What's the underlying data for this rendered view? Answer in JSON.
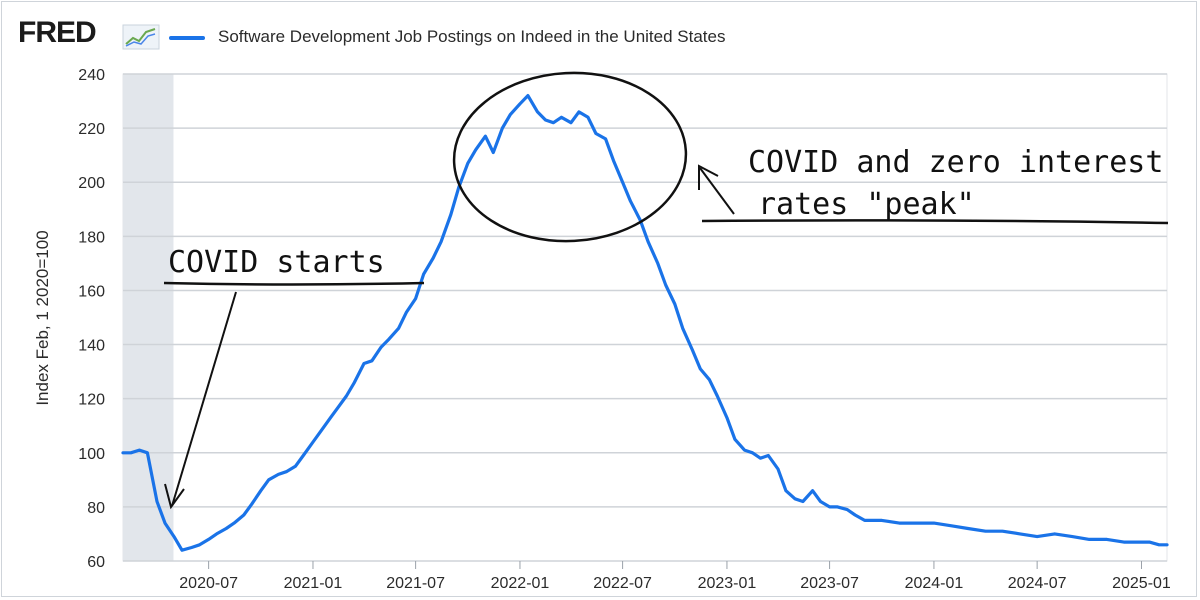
{
  "header": {
    "logo_text": "FRED",
    "logo_icon": "line-chart-icon",
    "legend_label": "Software Development Job Postings on Indeed in the United States",
    "legend_color": "#1a73e8"
  },
  "chart_data": {
    "type": "line",
    "title": "Software Development Job Postings on Indeed in the United States",
    "ylabel": "Index Feb, 1 2020=100",
    "xlabel": "",
    "ylim": [
      60,
      240
    ],
    "xlim": [
      "2020-02-01",
      "2025-02-15"
    ],
    "yticks": [
      60,
      80,
      100,
      120,
      140,
      160,
      180,
      200,
      220,
      240
    ],
    "xticks": [
      "2020-07",
      "2021-01",
      "2021-07",
      "2022-01",
      "2022-07",
      "2023-01",
      "2023-07",
      "2024-01",
      "2024-07",
      "2025-01"
    ],
    "grid": true,
    "recession_shading": [
      "2020-02-01",
      "2020-04-30"
    ],
    "series": [
      {
        "name": "Software Development Job Postings on Indeed in the United States",
        "color": "#1a73e8",
        "x": [
          "2020-02-01",
          "2020-02-15",
          "2020-03-01",
          "2020-03-15",
          "2020-04-01",
          "2020-04-15",
          "2020-05-01",
          "2020-05-15",
          "2020-06-01",
          "2020-06-15",
          "2020-07-01",
          "2020-07-15",
          "2020-08-01",
          "2020-08-15",
          "2020-09-01",
          "2020-09-15",
          "2020-10-01",
          "2020-10-15",
          "2020-11-01",
          "2020-11-15",
          "2020-12-01",
          "2020-12-15",
          "2021-01-01",
          "2021-01-15",
          "2021-02-01",
          "2021-02-15",
          "2021-03-01",
          "2021-03-15",
          "2021-04-01",
          "2021-04-15",
          "2021-05-01",
          "2021-05-15",
          "2021-06-01",
          "2021-06-15",
          "2021-07-01",
          "2021-07-15",
          "2021-08-01",
          "2021-08-15",
          "2021-09-01",
          "2021-09-15",
          "2021-10-01",
          "2021-10-15",
          "2021-11-01",
          "2021-11-15",
          "2021-12-01",
          "2021-12-15",
          "2022-01-01",
          "2022-01-15",
          "2022-02-01",
          "2022-02-15",
          "2022-03-01",
          "2022-03-15",
          "2022-04-01",
          "2022-04-15",
          "2022-05-01",
          "2022-05-15",
          "2022-06-01",
          "2022-06-15",
          "2022-07-01",
          "2022-07-15",
          "2022-08-01",
          "2022-08-15",
          "2022-09-01",
          "2022-09-15",
          "2022-10-01",
          "2022-10-15",
          "2022-11-01",
          "2022-11-15",
          "2022-12-01",
          "2022-12-15",
          "2023-01-01",
          "2023-01-15",
          "2023-02-01",
          "2023-02-15",
          "2023-03-01",
          "2023-03-15",
          "2023-04-01",
          "2023-04-15",
          "2023-05-01",
          "2023-05-15",
          "2023-06-01",
          "2023-06-15",
          "2023-07-01",
          "2023-07-15",
          "2023-08-01",
          "2023-08-15",
          "2023-09-01",
          "2023-10-01",
          "2023-11-01",
          "2023-12-01",
          "2024-01-01",
          "2024-02-01",
          "2024-03-01",
          "2024-04-01",
          "2024-05-01",
          "2024-06-01",
          "2024-07-01",
          "2024-08-01",
          "2024-09-01",
          "2024-10-01",
          "2024-11-01",
          "2024-12-01",
          "2025-01-01",
          "2025-01-15",
          "2025-02-01",
          "2025-02-15"
        ],
        "values": [
          100,
          100,
          101,
          100,
          82,
          74,
          69,
          64,
          65,
          66,
          68,
          70,
          72,
          74,
          77,
          81,
          86,
          90,
          92,
          93,
          95,
          99,
          104,
          108,
          113,
          117,
          121,
          126,
          133,
          134,
          139,
          142,
          146,
          152,
          157,
          166,
          172,
          178,
          188,
          198,
          207,
          212,
          217,
          211,
          220,
          225,
          229,
          232,
          226,
          223,
          222,
          224,
          222,
          226,
          224,
          218,
          216,
          208,
          200,
          193,
          186,
          178,
          170,
          162,
          155,
          146,
          138,
          131,
          127,
          121,
          113,
          105,
          101,
          100,
          98,
          99,
          94,
          86,
          83,
          82,
          86,
          82,
          80,
          80,
          79,
          77,
          75,
          75,
          74,
          74,
          74,
          73,
          72,
          71,
          71,
          70,
          69,
          70,
          69,
          68,
          68,
          67,
          67,
          67,
          66,
          66
        ]
      }
    ],
    "annotations": [
      {
        "text": "COVID starts",
        "points_to": "2020-05-01"
      },
      {
        "text": "COVID and zero interest",
        "text2": "rates \"peak\"",
        "points_to": "peak"
      }
    ]
  }
}
